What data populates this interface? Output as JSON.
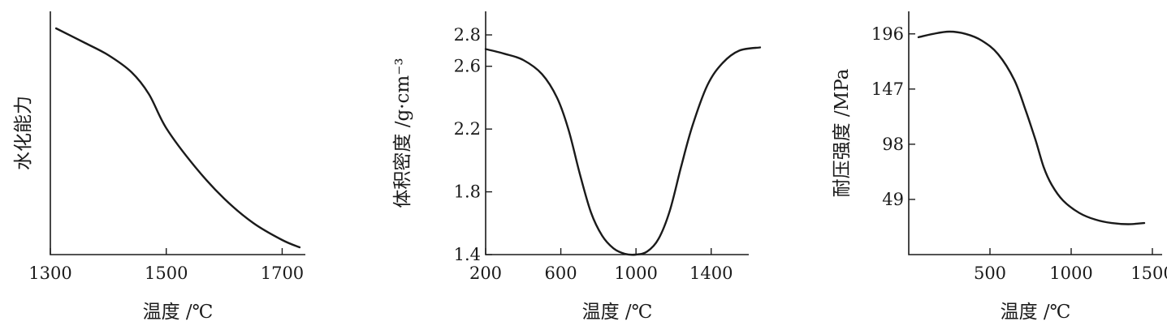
{
  "chart_data": [
    {
      "type": "line",
      "xlabel": "温度 /℃",
      "ylabel": "水化能力",
      "x_ticks": [
        "1300",
        "1500",
        "1700"
      ],
      "y_ticks": [],
      "xlim": [
        1300,
        1740
      ],
      "ylim": [
        0,
        1
      ],
      "series": [
        {
          "x": [
            1310,
            1360,
            1400,
            1440,
            1470,
            1500,
            1550,
            1600,
            1650,
            1700,
            1730
          ],
          "y": [
            0.93,
            0.87,
            0.82,
            0.75,
            0.66,
            0.52,
            0.36,
            0.23,
            0.13,
            0.06,
            0.03
          ]
        }
      ]
    },
    {
      "type": "line",
      "xlabel": "温度 /℃",
      "ylabel": "体积密度 /g·cm⁻³",
      "x_ticks": [
        "200",
        "600",
        "1000",
        "1400"
      ],
      "y_ticks": [
        "1.4",
        "1.8",
        "2.2",
        "2.6",
        "2.8"
      ],
      "xlim": [
        200,
        1600
      ],
      "ylim": [
        1.4,
        2.95
      ],
      "series": [
        {
          "x": [
            200,
            300,
            400,
            500,
            580,
            640,
            700,
            760,
            820,
            880,
            940,
            1000,
            1060,
            1120,
            1180,
            1240,
            1300,
            1380,
            1460,
            1550,
            1660
          ],
          "y": [
            2.71,
            2.68,
            2.64,
            2.55,
            2.4,
            2.2,
            1.92,
            1.67,
            1.52,
            1.44,
            1.405,
            1.4,
            1.42,
            1.5,
            1.68,
            1.96,
            2.22,
            2.48,
            2.62,
            2.7,
            2.72
          ]
        }
      ]
    },
    {
      "type": "line",
      "xlabel": "温度 /℃",
      "ylabel": "耐压强度 /MPa",
      "x_ticks": [
        "500",
        "1000",
        "1500"
      ],
      "y_ticks": [
        "49",
        "98",
        "147",
        "196"
      ],
      "xlim": [
        0,
        1560
      ],
      "ylim": [
        0,
        216
      ],
      "series": [
        {
          "x": [
            60,
            150,
            250,
            350,
            450,
            550,
            650,
            720,
            780,
            830,
            880,
            950,
            1050,
            1150,
            1250,
            1350,
            1450
          ],
          "y": [
            193,
            196,
            198,
            196,
            190,
            178,
            155,
            128,
            102,
            78,
            62,
            48,
            37,
            31,
            28,
            27,
            28
          ]
        }
      ]
    }
  ]
}
